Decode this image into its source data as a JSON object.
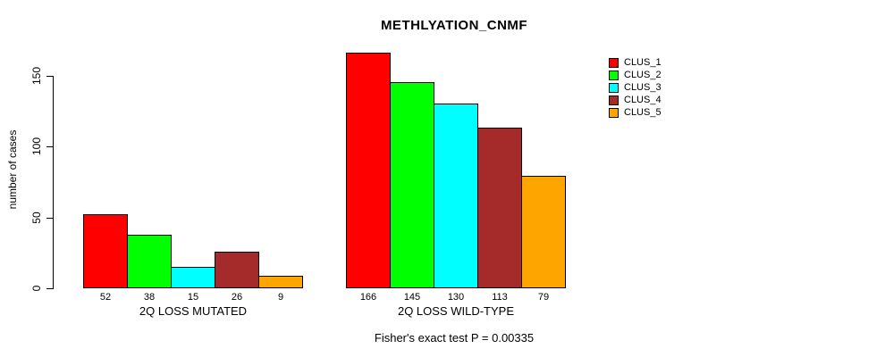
{
  "title": "METHLYATION_CNMF",
  "footer": "Fisher's exact test P = 0.00335",
  "chart_data": {
    "type": "bar",
    "title": "METHLYATION_CNMF",
    "xlabel": "",
    "ylabel": "number of cases",
    "yticks": [
      0,
      50,
      100,
      150
    ],
    "ylim": [
      0,
      166
    ],
    "grid": false,
    "legend_position": "right",
    "groups": [
      {
        "label": "2Q LOSS MUTATED",
        "values": [
          52,
          38,
          15,
          26,
          9
        ]
      },
      {
        "label": "2Q LOSS WILD-TYPE",
        "values": [
          166,
          145,
          130,
          113,
          79
        ]
      }
    ],
    "series": [
      {
        "name": "CLUS_1",
        "color": "#ff0000"
      },
      {
        "name": "CLUS_2",
        "color": "#00ff00"
      },
      {
        "name": "CLUS_3",
        "color": "#00ffff"
      },
      {
        "name": "CLUS_4",
        "color": "#a52a2a"
      },
      {
        "name": "CLUS_5",
        "color": "#ffa500"
      }
    ],
    "annotation": "Fisher's exact test P = 0.00335"
  }
}
